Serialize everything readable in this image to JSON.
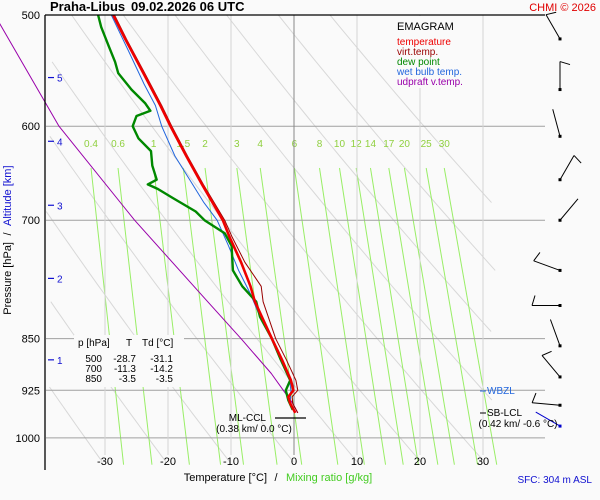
{
  "header": {
    "station": "Praha-Libus",
    "datetime": "09.02.2026 06 UTC",
    "copyright": "CHMI © 2026"
  },
  "colors": {
    "temperature": "#ee0000",
    "virt_temp": "#990000",
    "dew_point": "#008800",
    "wet_bulb": "#2266dd",
    "updraft": "#9900aa",
    "mixing": "#99ee66",
    "mixing_label": "#88cc44",
    "grid": "#a0a0a0",
    "adiabat": "#d8d8d8",
    "altitude": "#1010d0"
  },
  "chart_data": {
    "type": "line",
    "title": "EMAGRAM",
    "xlabel": "Temperature [°C]",
    "xlabel2": "Mixing ratio [g/kg]",
    "ylabel": "Pressure [hPa]",
    "ylabel2": "Altitude [km]",
    "xlim": [
      -39,
      32
    ],
    "ylim_hpa": [
      500,
      1050
    ],
    "x_ticks": [
      -30,
      -20,
      -10,
      0,
      10,
      20,
      30
    ],
    "pressure_ticks": [
      500,
      600,
      700,
      850,
      925,
      1000
    ],
    "altitude_ticks": [
      {
        "km": "5",
        "p": 554
      },
      {
        "km": "4",
        "p": 615
      },
      {
        "km": "3",
        "p": 683
      },
      {
        "km": "2",
        "p": 770
      },
      {
        "km": "1",
        "p": 880
      }
    ],
    "mixing_ratio_lines": [
      "0.4",
      "0.6",
      "1",
      "1.5",
      "2",
      "3",
      "4",
      "6",
      "8",
      "10",
      "12",
      "14",
      "17",
      "20",
      "25",
      "30"
    ],
    "legend": [
      {
        "key": "temperature",
        "label": "temperature"
      },
      {
        "key": "virt_temp",
        "label": "virt.temp."
      },
      {
        "key": "dew_point",
        "label": "dew point"
      },
      {
        "key": "wet_bulb",
        "label": "wet bulb temp."
      },
      {
        "key": "updraft",
        "label": "udpraft v.temp."
      }
    ],
    "series": [
      {
        "name": "temperature",
        "points": [
          [
            500,
            -28.7
          ],
          [
            520,
            -26.8
          ],
          [
            550,
            -23.9
          ],
          [
            580,
            -21.2
          ],
          [
            600,
            -19.6
          ],
          [
            630,
            -17.1
          ],
          [
            660,
            -14.6
          ],
          [
            700,
            -11.3
          ],
          [
            720,
            -10.2
          ],
          [
            750,
            -8.4
          ],
          [
            780,
            -6.9
          ],
          [
            800,
            -6.2
          ],
          [
            850,
            -3.5
          ],
          [
            880,
            -1.9
          ],
          [
            910,
            -0.5
          ],
          [
            925,
            -0.1
          ],
          [
            935,
            -0.9
          ],
          [
            945,
            -0.6
          ],
          [
            960,
            0.2
          ]
        ]
      },
      {
        "name": "virt_temp",
        "points": [
          [
            500,
            -28.5
          ],
          [
            520,
            -26.6
          ],
          [
            550,
            -23.7
          ],
          [
            580,
            -21.0
          ],
          [
            600,
            -19.4
          ],
          [
            630,
            -16.9
          ],
          [
            660,
            -14.4
          ],
          [
            700,
            -11.0
          ],
          [
            720,
            -9.8
          ],
          [
            750,
            -7.8
          ],
          [
            780,
            -5.2
          ],
          [
            800,
            -4.9
          ],
          [
            850,
            -2.9
          ],
          [
            880,
            -1.2
          ],
          [
            910,
            0.3
          ],
          [
            925,
            0.6
          ],
          [
            935,
            -0.3
          ],
          [
            945,
            -0.2
          ],
          [
            960,
            0.6
          ]
        ]
      },
      {
        "name": "dew_point",
        "points": [
          [
            500,
            -31.1
          ],
          [
            510,
            -30.6
          ],
          [
            525,
            -29.5
          ],
          [
            540,
            -28.4
          ],
          [
            550,
            -27.9
          ],
          [
            565,
            -25.8
          ],
          [
            578,
            -23.6
          ],
          [
            585,
            -22.8
          ],
          [
            590,
            -25.0
          ],
          [
            600,
            -25.6
          ],
          [
            612,
            -24.7
          ],
          [
            625,
            -22.7
          ],
          [
            640,
            -22.5
          ],
          [
            655,
            -21.8
          ],
          [
            660,
            -23.2
          ],
          [
            665,
            -21.6
          ],
          [
            675,
            -19.2
          ],
          [
            690,
            -15.6
          ],
          [
            700,
            -14.2
          ],
          [
            715,
            -11.0
          ],
          [
            730,
            -9.9
          ],
          [
            760,
            -9.7
          ],
          [
            780,
            -8.2
          ],
          [
            800,
            -6.0
          ],
          [
            820,
            -5.4
          ],
          [
            850,
            -3.5
          ],
          [
            880,
            -2.1
          ],
          [
            910,
            -0.6
          ],
          [
            925,
            -1.3
          ],
          [
            940,
            -0.9
          ],
          [
            955,
            -0.2
          ]
        ]
      },
      {
        "name": "wet_bulb",
        "points": [
          [
            500,
            -29.0
          ],
          [
            530,
            -26.3
          ],
          [
            560,
            -23.8
          ],
          [
            580,
            -22.0
          ],
          [
            600,
            -21.0
          ],
          [
            630,
            -18.9
          ],
          [
            660,
            -16.1
          ],
          [
            680,
            -14.3
          ],
          [
            700,
            -12.2
          ],
          [
            730,
            -10.4
          ],
          [
            760,
            -8.8
          ],
          [
            790,
            -6.9
          ],
          [
            820,
            -5.4
          ],
          [
            850,
            -3.5
          ],
          [
            880,
            -2.0
          ],
          [
            910,
            -0.7
          ],
          [
            925,
            -0.5
          ],
          [
            945,
            -0.6
          ],
          [
            960,
            0.1
          ]
        ]
      },
      {
        "name": "updraft",
        "points": [
          [
            500,
            -47.5
          ],
          [
            600,
            -37.3
          ],
          [
            700,
            -25.3
          ],
          [
            800,
            -13.7
          ],
          [
            850,
            -8.4
          ],
          [
            900,
            -3.6
          ],
          [
            925,
            -1.7
          ],
          [
            945,
            -0.2
          ],
          [
            960,
            0.6
          ]
        ]
      }
    ],
    "info_table": {
      "headers": [
        "p [hPa]",
        "T",
        "Td [°C]"
      ],
      "rows": [
        [
          "500",
          "-28.7",
          "-31.1"
        ],
        [
          "700",
          "-11.3",
          "-14.2"
        ],
        [
          "850",
          "-3.5",
          "-3.5"
        ]
      ]
    },
    "annotations": {
      "ml_ccl_label": "ML-CCL",
      "ml_ccl_value": "(0.38 km/ 0.0 °C)",
      "ml_ccl_p": 958,
      "wbzl_label": "WBZL",
      "wbzl_p": 925,
      "sb_lcl_label": "SB-LCL",
      "sb_lcl_value": "(0.42 km/ -0.6 °C)",
      "sb_lcl_p": 953
    },
    "wind_barbs": [
      {
        "p": 520,
        "dir": 330,
        "kt": 10
      },
      {
        "p": 565,
        "dir": 0,
        "kt": 10
      },
      {
        "p": 610,
        "dir": 345,
        "kt": 5
      },
      {
        "p": 655,
        "dir": 30,
        "kt": 10
      },
      {
        "p": 700,
        "dir": 40,
        "kt": 5
      },
      {
        "p": 760,
        "dir": 290,
        "kt": 10
      },
      {
        "p": 805,
        "dir": 270,
        "kt": 10
      },
      {
        "p": 860,
        "dir": 340,
        "kt": 5
      },
      {
        "p": 905,
        "dir": 320,
        "kt": 10
      },
      {
        "p": 948,
        "dir": 275,
        "kt": 10
      },
      {
        "p": 965,
        "dir": 300,
        "kt": 5,
        "surface": true
      }
    ]
  },
  "footer": {
    "axis_sep": "/",
    "sfc": "SFC: 304 m ASL"
  }
}
